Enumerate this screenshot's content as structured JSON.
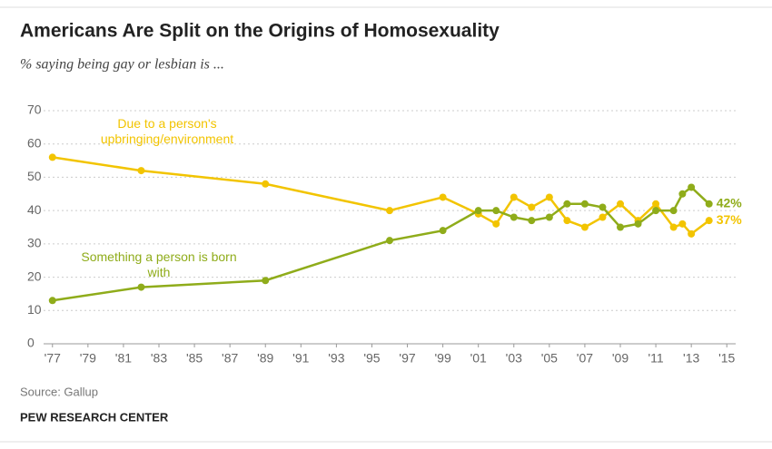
{
  "chart_data": {
    "type": "line",
    "title": "Americans Are Split on the Origins of Homosexuality",
    "subtitle": "% saying being gay or lesbian is ...",
    "x": [
      1977,
      1982,
      1989,
      1996,
      1999,
      2001,
      2002,
      2003,
      2004,
      2005,
      2006,
      2007,
      2008,
      2009,
      2010,
      2011,
      2012,
      2012.5,
      2013,
      2014
    ],
    "series": [
      {
        "name": "Due to a person's upbringing/environment",
        "color": "#f2c400",
        "values": [
          56,
          52,
          48,
          40,
          44,
          39,
          36,
          44,
          41,
          44,
          37,
          35,
          38,
          42,
          37,
          42,
          35,
          36,
          33,
          37
        ],
        "value_labels": [
          null,
          null,
          null,
          null,
          null,
          null,
          null,
          null,
          null,
          null,
          null,
          null,
          null,
          null,
          null,
          null,
          null,
          null,
          null,
          "37%"
        ]
      },
      {
        "name": "Something a person is born with",
        "color": "#8fac1a",
        "values": [
          13,
          17,
          19,
          31,
          34,
          40,
          40,
          38,
          37,
          38,
          42,
          42,
          41,
          35,
          36,
          40,
          40,
          45,
          47,
          42
        ],
        "value_labels": [
          null,
          null,
          null,
          null,
          null,
          null,
          null,
          null,
          null,
          null,
          null,
          null,
          null,
          null,
          null,
          null,
          null,
          null,
          null,
          "42%"
        ]
      }
    ],
    "xlim": [
      1976.5,
      2015.5
    ],
    "xticks": [
      {
        "value": 1977,
        "label": "'77"
      },
      {
        "value": 1979,
        "label": "'79"
      },
      {
        "value": 1981,
        "label": "'81"
      },
      {
        "value": 1983,
        "label": "'83"
      },
      {
        "value": 1985,
        "label": "'85"
      },
      {
        "value": 1987,
        "label": "'87"
      },
      {
        "value": 1989,
        "label": "'89"
      },
      {
        "value": 1991,
        "label": "'91"
      },
      {
        "value": 1993,
        "label": "'93"
      },
      {
        "value": 1995,
        "label": "'95"
      },
      {
        "value": 1997,
        "label": "'97"
      },
      {
        "value": 1999,
        "label": "'99"
      },
      {
        "value": 2001,
        "label": "'01"
      },
      {
        "value": 2003,
        "label": "'03"
      },
      {
        "value": 2005,
        "label": "'05"
      },
      {
        "value": 2007,
        "label": "'07"
      },
      {
        "value": 2009,
        "label": "'09"
      },
      {
        "value": 2011,
        "label": "'11"
      },
      {
        "value": 2013,
        "label": "'13"
      },
      {
        "value": 2015,
        "label": "'15"
      }
    ],
    "ylim": [
      0,
      70
    ],
    "yticks": [
      0,
      10,
      20,
      30,
      40,
      50,
      60,
      70
    ],
    "grid": true,
    "source": "Source: Gallup",
    "credit": "PEW RESEARCH CENTER"
  }
}
